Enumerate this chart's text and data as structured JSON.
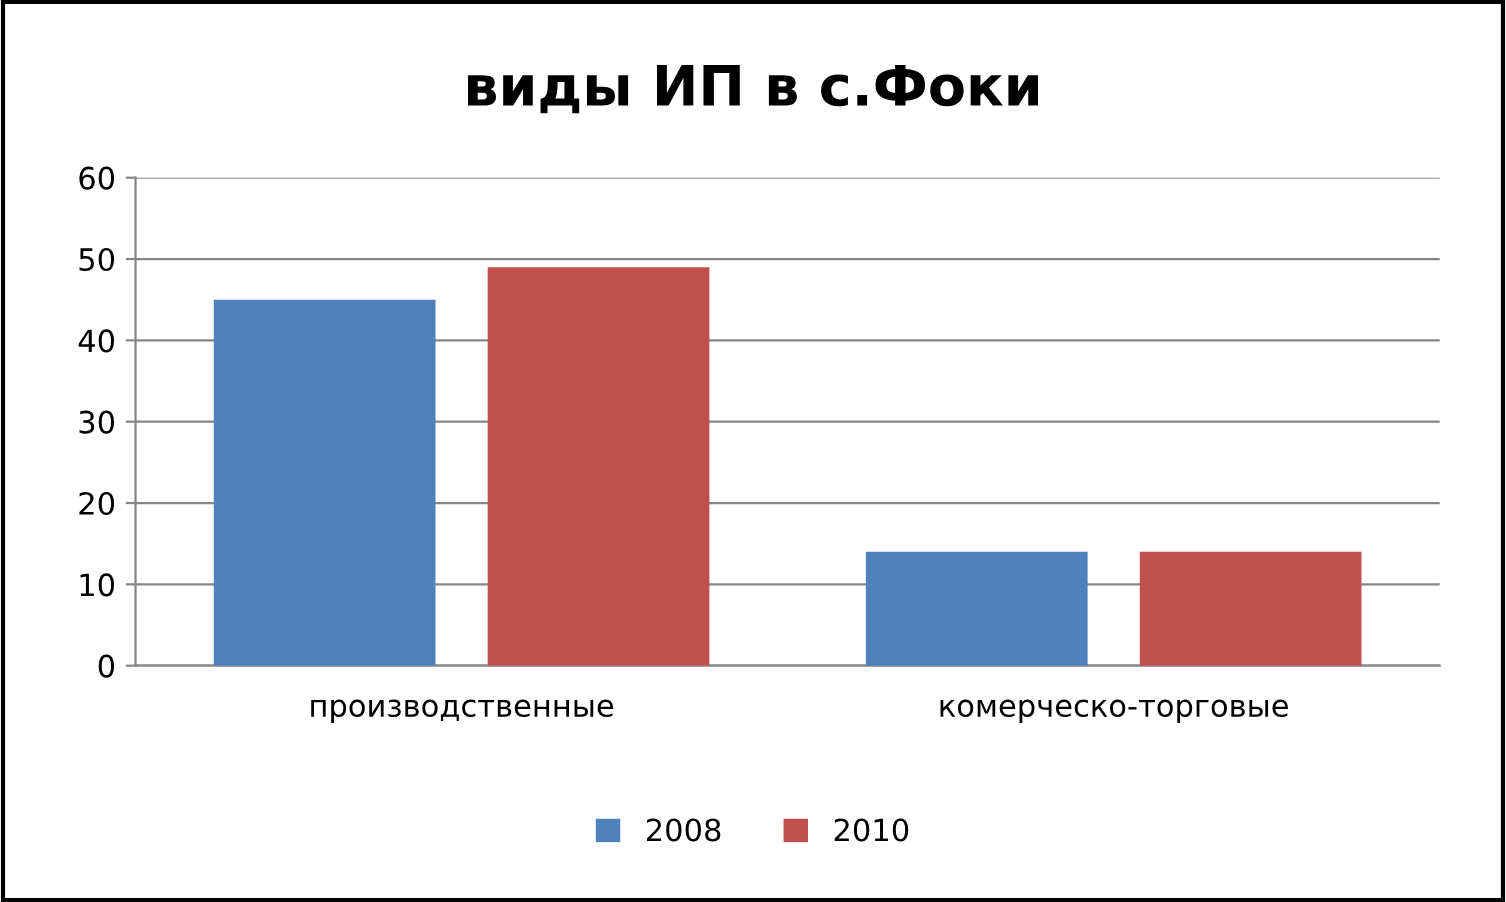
{
  "chart_data": {
    "type": "bar",
    "title": "виды ИП в с.Фоки",
    "categories": [
      "производственные",
      "комерческо-торговые"
    ],
    "series": [
      {
        "name": "2008",
        "color": "#4f81bd",
        "values": [
          45,
          14
        ]
      },
      {
        "name": "2010",
        "color": "#c0504d",
        "values": [
          49,
          14
        ]
      }
    ],
    "ylim": [
      0,
      60
    ],
    "yticks": [
      0,
      10,
      20,
      30,
      40,
      50,
      60
    ],
    "grid": "y",
    "legend": "bottom"
  }
}
